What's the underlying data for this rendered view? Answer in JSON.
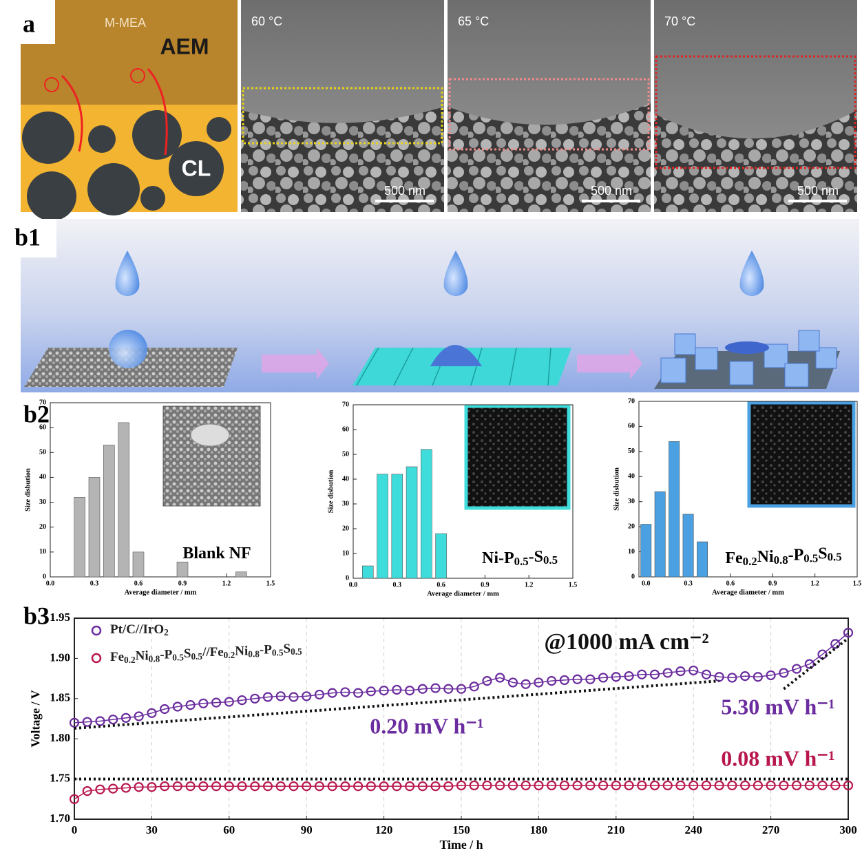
{
  "panel_a": {
    "label": "a",
    "illustration": {
      "top": "M-MEA",
      "membrane": "AEM",
      "layer": "CL"
    },
    "images": [
      {
        "temperature": "60 °C",
        "scale_bar": "500 nm"
      },
      {
        "temperature": "65 °C",
        "scale_bar": "500 nm"
      },
      {
        "temperature": "70 °C",
        "scale_bar": "500 nm"
      }
    ]
  },
  "panel_b1": {
    "label": "b1"
  },
  "panel_b2": {
    "label": "b2"
  },
  "panel_b3": {
    "label": "b3"
  },
  "chart_data": [
    {
      "type": "bar",
      "annotation": "Blank NF",
      "xlabel": "Average diameter / mm",
      "ylabel": "Size disbution",
      "color": "#b4b4b4",
      "x": [
        0.2,
        0.3,
        0.4,
        0.5,
        0.6,
        0.9,
        1.3
      ],
      "values": [
        32,
        40,
        53,
        62,
        10,
        6,
        2
      ],
      "xlim": [
        0,
        1.5
      ],
      "xticks": [
        {
          "value": 0,
          "label": "0.0"
        },
        0.3,
        0.6,
        0.9,
        1.2,
        1.5
      ],
      "ylim": [
        0,
        70
      ],
      "yticks": [
        0,
        10,
        20,
        30,
        40,
        50,
        60,
        70
      ]
    },
    {
      "type": "bar",
      "annotation": "Ni-P0.5-S0.5",
      "xlabel": "Average diameter / mm",
      "ylabel": "Size disbution",
      "color": "#3fdcdc",
      "x": [
        0.1,
        0.2,
        0.3,
        0.4,
        0.5,
        0.6
      ],
      "values": [
        5,
        42,
        42,
        45,
        52,
        18
      ],
      "xlim": [
        0,
        1.5
      ],
      "xticks": [
        {
          "value": 0,
          "label": "0.0"
        },
        0.3,
        0.6,
        0.9,
        1.2,
        1.5
      ],
      "ylim": [
        0,
        70
      ],
      "yticks": [
        0,
        10,
        20,
        30,
        40,
        50,
        60,
        70
      ]
    },
    {
      "type": "bar",
      "annotation": "Fe0.2Ni0.8-P0.5S0.5",
      "xlabel": "Average diameter / mm",
      "ylabel": "Size disbution",
      "color": "#4aa0e0",
      "x": [
        0.0,
        0.1,
        0.2,
        0.3,
        0.4
      ],
      "values": [
        21,
        34,
        54,
        25,
        14
      ],
      "xlim": [
        -0.05,
        1.5
      ],
      "xticks": [
        {
          "value": 0,
          "label": "0.0"
        },
        0.3,
        0.6,
        0.9,
        1.2,
        1.5
      ],
      "ylim": [
        0,
        70
      ],
      "yticks": [
        0,
        10,
        20,
        30,
        40,
        50,
        60,
        70
      ]
    },
    {
      "type": "line",
      "xlabel": "Time / h",
      "ylabel": "Voltage / V",
      "grid": true,
      "x": [
        0,
        5,
        10,
        15,
        20,
        25,
        30,
        35,
        40,
        45,
        50,
        55,
        60,
        65,
        70,
        75,
        80,
        85,
        90,
        95,
        100,
        105,
        110,
        115,
        120,
        125,
        130,
        135,
        140,
        145,
        150,
        155,
        160,
        165,
        170,
        175,
        180,
        185,
        190,
        195,
        200,
        205,
        210,
        215,
        220,
        225,
        230,
        235,
        240,
        245,
        250,
        255,
        260,
        265,
        270,
        275,
        280,
        285,
        290,
        295,
        300
      ],
      "series": [
        {
          "name": "Pt/C//IrO2",
          "color": "#6a2c9e",
          "values": [
            1.82,
            1.821,
            1.822,
            1.824,
            1.826,
            1.828,
            1.832,
            1.837,
            1.84,
            1.842,
            1.844,
            1.845,
            1.846,
            1.848,
            1.85,
            1.852,
            1.853,
            1.852,
            1.853,
            1.855,
            1.857,
            1.858,
            1.857,
            1.859,
            1.86,
            1.861,
            1.86,
            1.862,
            1.863,
            1.862,
            1.862,
            1.865,
            1.872,
            1.876,
            1.87,
            1.868,
            1.87,
            1.872,
            1.873,
            1.874,
            1.874,
            1.876,
            1.877,
            1.878,
            1.88,
            1.88,
            1.882,
            1.884,
            1.885,
            1.88,
            1.877,
            1.876,
            1.878,
            1.877,
            1.879,
            1.882,
            1.887,
            1.893,
            1.905,
            1.918,
            1.932
          ]
        },
        {
          "name": "Fe0.2Ni0.8-P0.5S0.5//Fe0.2Ni0.8-P0.5S0.5",
          "color": "#b8174c",
          "values": [
            1.725,
            1.735,
            1.737,
            1.738,
            1.739,
            1.74,
            1.74,
            1.741,
            1.741,
            1.741,
            1.741,
            1.741,
            1.741,
            1.741,
            1.741,
            1.741,
            1.741,
            1.741,
            1.741,
            1.741,
            1.741,
            1.741,
            1.741,
            1.741,
            1.741,
            1.741,
            1.741,
            1.741,
            1.741,
            1.741,
            1.742,
            1.742,
            1.742,
            1.742,
            1.742,
            1.742,
            1.742,
            1.742,
            1.742,
            1.742,
            1.742,
            1.742,
            1.742,
            1.742,
            1.742,
            1.742,
            1.742,
            1.742,
            1.742,
            1.742,
            1.742,
            1.742,
            1.742,
            1.742,
            1.742,
            1.742,
            1.742,
            1.742,
            1.742,
            1.742,
            1.742
          ]
        }
      ],
      "trend_lines": [
        {
          "x": [
            0,
            250
          ],
          "y": [
            1.813,
            1.872
          ]
        },
        {
          "x": [
            275,
            300
          ],
          "y": [
            1.862,
            1.925
          ]
        },
        {
          "x": [
            0,
            300
          ],
          "y": [
            1.75,
            1.75
          ]
        }
      ],
      "annotations": [
        {
          "text": "@1000 mA cm⁻²",
          "color": "#111111"
        },
        {
          "text": "0.20 mV h⁻¹",
          "color": "#6a2c9e"
        },
        {
          "text": "5.30 mV h⁻¹",
          "color": "#6a2c9e"
        },
        {
          "text": "0.08 mV h⁻¹",
          "color": "#b8174c"
        }
      ],
      "xlim": [
        0,
        300
      ],
      "xticks": [
        0,
        30,
        60,
        90,
        120,
        150,
        180,
        210,
        240,
        270,
        300
      ],
      "ylim": [
        1.7,
        1.95
      ],
      "yticks": [
        {
          "value": 1.7,
          "label": "1.70"
        },
        1.75,
        {
          "value": 1.8,
          "label": "1.80"
        },
        1.85,
        {
          "value": 1.9,
          "label": "1.90"
        },
        1.95
      ]
    }
  ]
}
